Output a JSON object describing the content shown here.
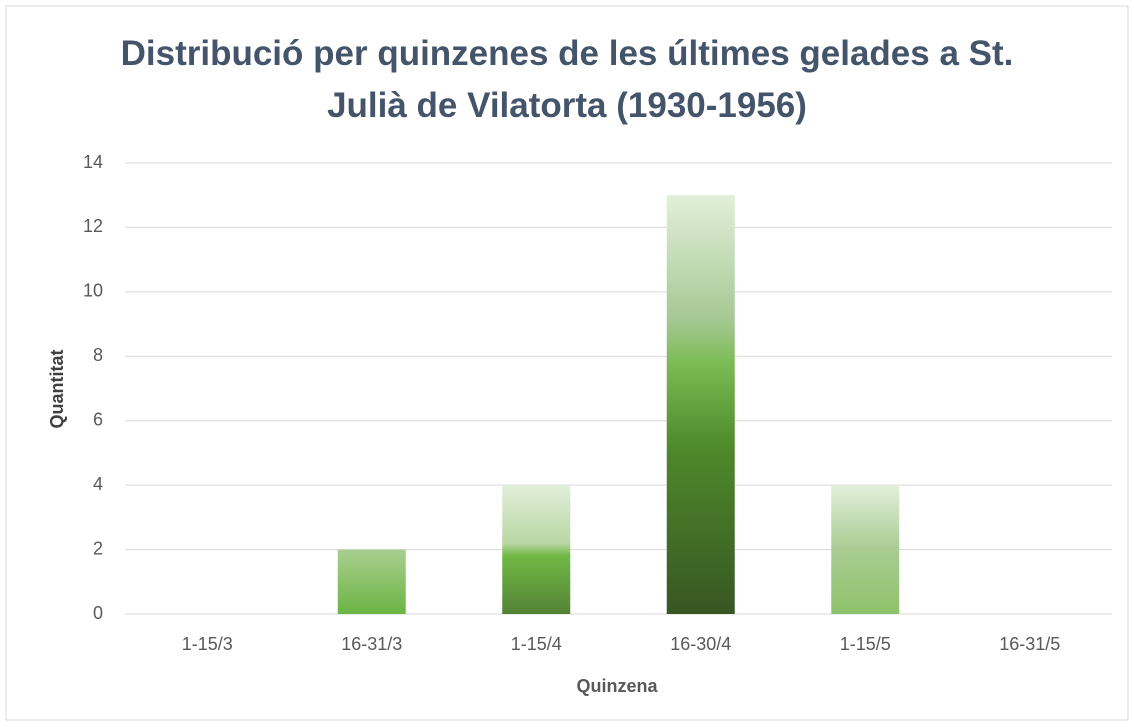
{
  "chart_data": {
    "type": "bar",
    "title": "Distribució per quinzenes de les últimes gelades a St. Julià de Vilatorta (1930-1956)",
    "x_label": "Quinzena",
    "y_label": "Quantitat",
    "categories": [
      "1-15/3",
      "16-31/3",
      "1-15/4",
      "16-30/4",
      "1-15/5",
      "16-31/5"
    ],
    "values": [
      0,
      2,
      4,
      13,
      4,
      0
    ],
    "ylim": [
      0,
      14
    ],
    "yticks": [
      0,
      2,
      4,
      6,
      8,
      10,
      12,
      14
    ],
    "grid": true
  }
}
